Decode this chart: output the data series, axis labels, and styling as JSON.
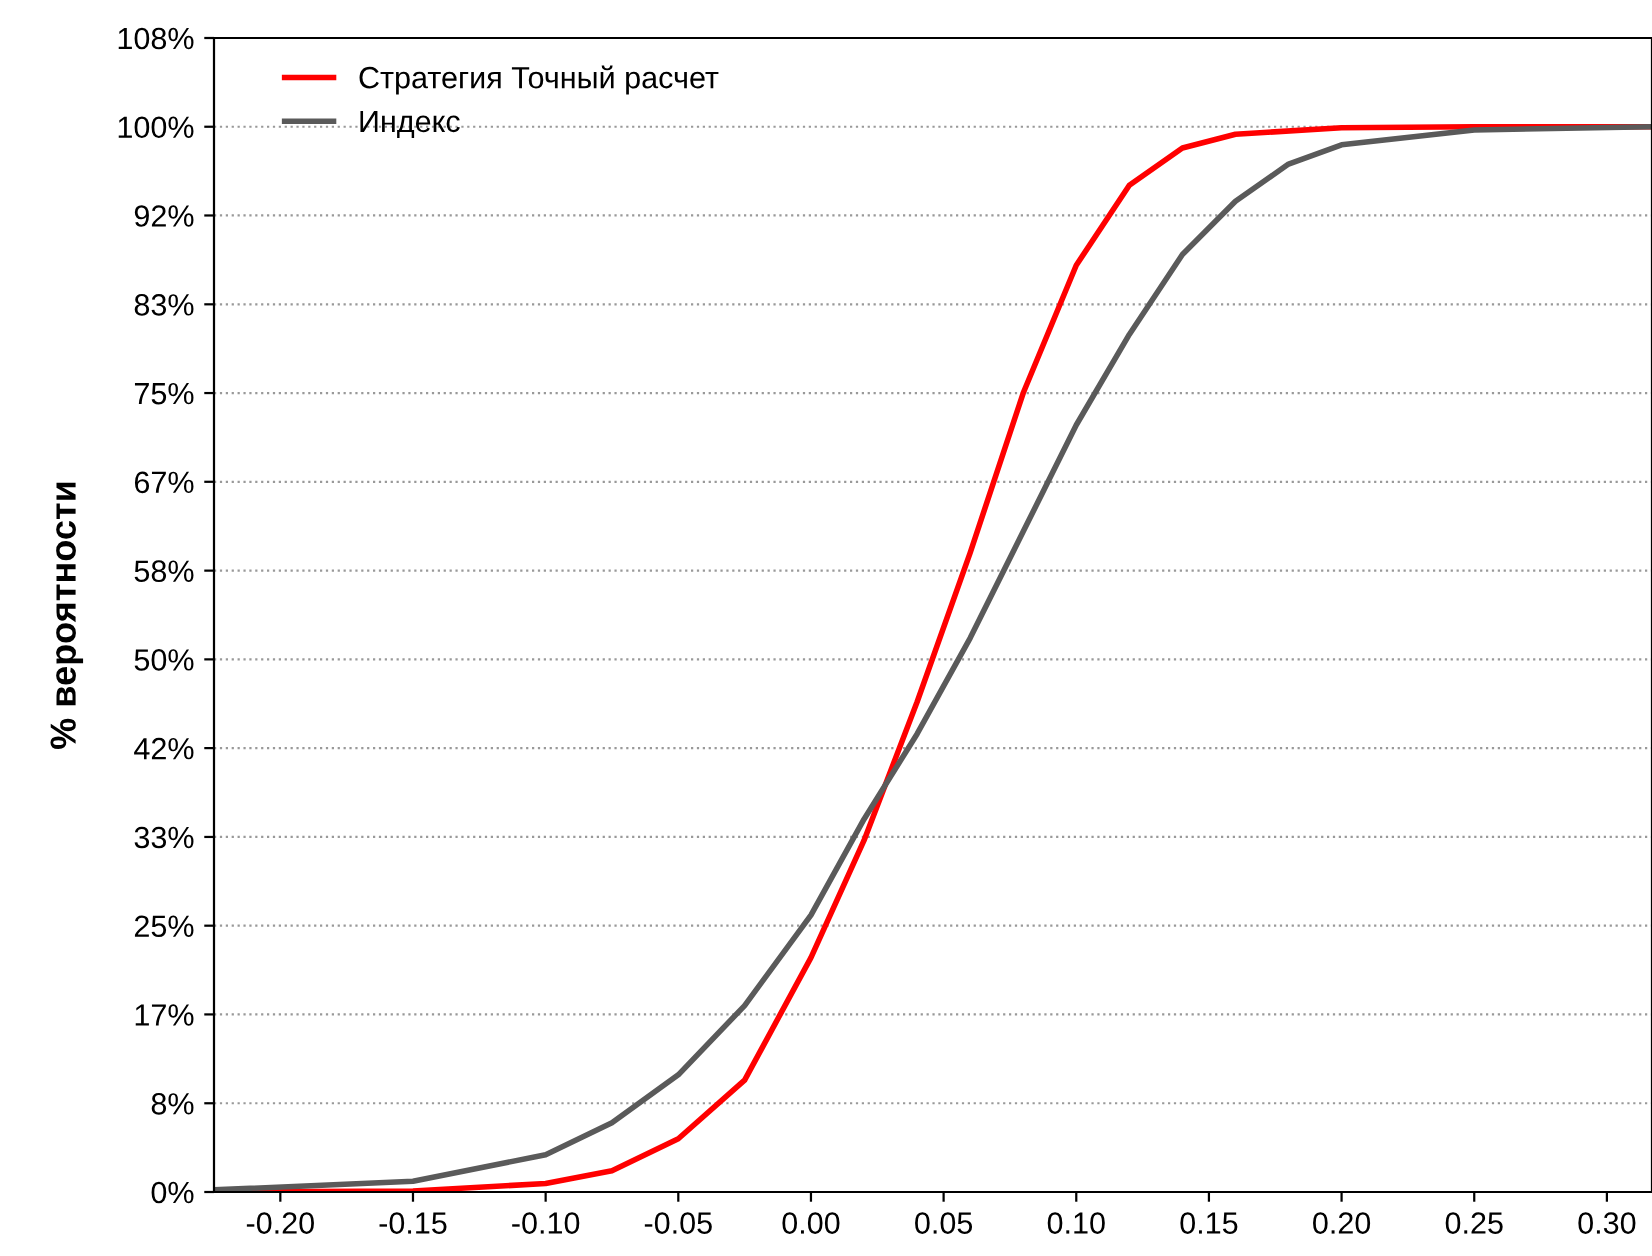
{
  "chart_data": {
    "type": "line",
    "ylabel": "% вероятности",
    "xlim": [
      -0.225,
      0.317
    ],
    "xticks": [
      {
        "value": -0.2,
        "label": "-0.20"
      },
      {
        "value": -0.15,
        "label": "-0.15"
      },
      {
        "value": -0.1,
        "label": "-0.10"
      },
      {
        "value": -0.05,
        "label": "-0.05"
      },
      {
        "value": 0,
        "label": "0.00"
      },
      {
        "value": 0.05,
        "label": "0.05"
      },
      {
        "value": 0.1,
        "label": "0.10"
      },
      {
        "value": 0.15,
        "label": "0.15"
      },
      {
        "value": 0.2,
        "label": "0.20"
      },
      {
        "value": 0.25,
        "label": "0.25"
      },
      {
        "value": 0.3,
        "label": "0.30"
      }
    ],
    "ylim": [
      0,
      108.33
    ],
    "yticks": [
      {
        "value": 0,
        "label": "0%"
      },
      {
        "value": 8.33,
        "label": "8%"
      },
      {
        "value": 16.67,
        "label": "17%"
      },
      {
        "value": 25,
        "label": "25%"
      },
      {
        "value": 33.33,
        "label": "33%"
      },
      {
        "value": 41.67,
        "label": "42%"
      },
      {
        "value": 50,
        "label": "50%"
      },
      {
        "value": 58.33,
        "label": "58%"
      },
      {
        "value": 66.67,
        "label": "67%"
      },
      {
        "value": 75,
        "label": "75%"
      },
      {
        "value": 83.33,
        "label": "83%"
      },
      {
        "value": 91.67,
        "label": "92%"
      },
      {
        "value": 100,
        "label": "100%"
      },
      {
        "value": 108.33,
        "label": "108%"
      }
    ],
    "grid": "y",
    "legend": "top left",
    "marker": "none",
    "line_style": "solid",
    "series": [
      {
        "name": "Стратегия Точный расчет",
        "color": "#ff0000",
        "x": [
          -0.225,
          -0.15,
          -0.1,
          -0.075,
          -0.05,
          -0.025,
          0,
          0.02,
          0.04,
          0.06,
          0.08,
          0.1,
          0.12,
          0.14,
          0.16,
          0.2,
          0.25,
          0.317
        ],
        "values": [
          0,
          0.1,
          0.8,
          2,
          5,
          10.5,
          22,
          33,
          46,
          60,
          75,
          87,
          94.5,
          98,
          99.3,
          99.9,
          100,
          100
        ]
      },
      {
        "name": "Индекс",
        "color": "#5a5a5a",
        "x": [
          -0.225,
          -0.15,
          -0.1,
          -0.075,
          -0.05,
          -0.025,
          0,
          0.02,
          0.04,
          0.06,
          0.08,
          0.1,
          0.12,
          0.14,
          0.16,
          0.18,
          0.2,
          0.25,
          0.317
        ],
        "values": [
          0.2,
          1,
          3.5,
          6.5,
          11,
          17.5,
          26,
          35,
          43,
          52,
          62,
          72,
          80.5,
          88,
          93,
          96.5,
          98.3,
          99.7,
          100
        ]
      }
    ]
  }
}
